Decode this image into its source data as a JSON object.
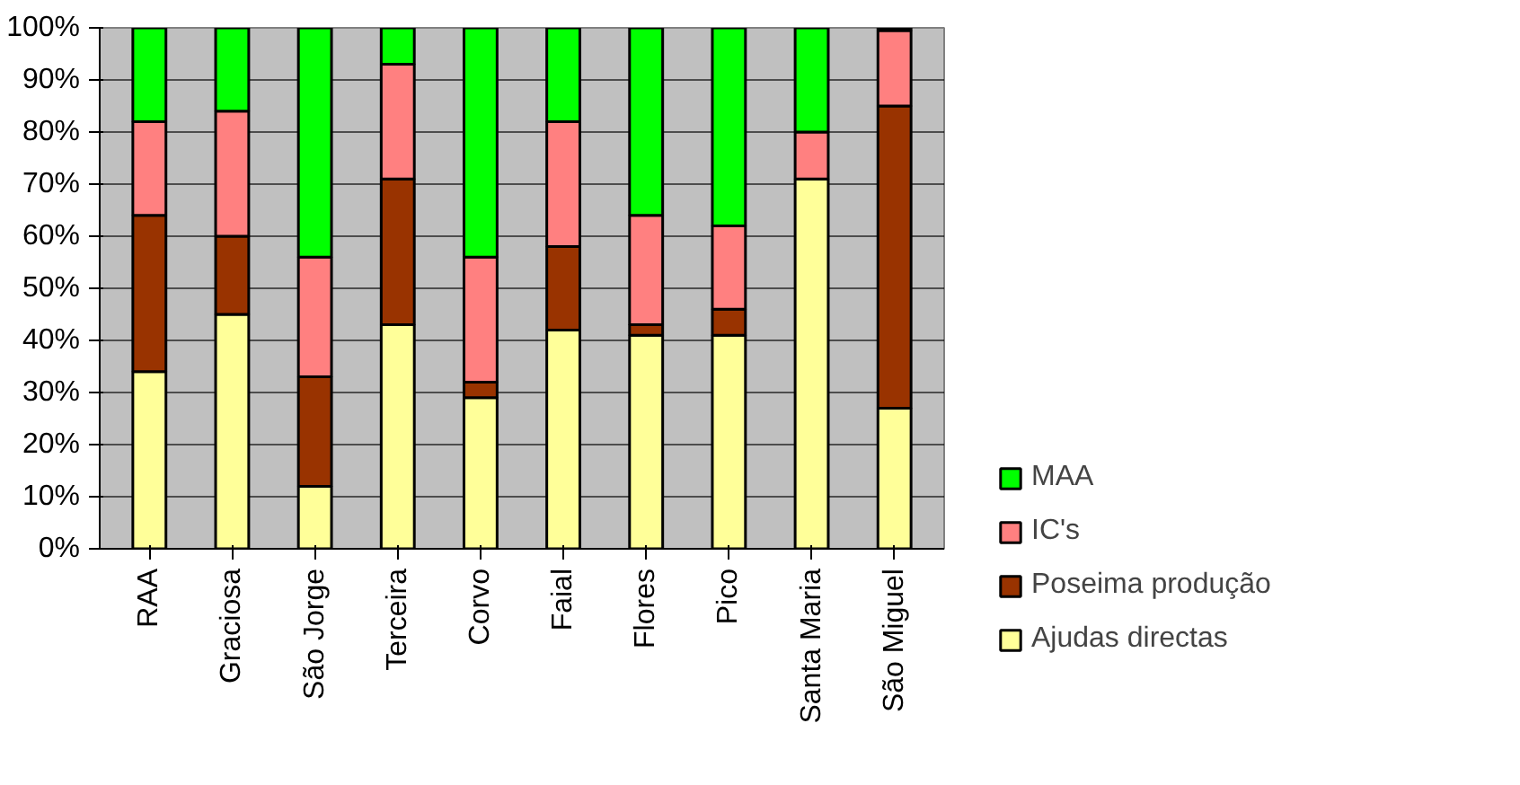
{
  "chart_data": {
    "type": "bar",
    "stacked": true,
    "categories": [
      "RAA",
      "Graciosa",
      "São Jorge",
      "Terceira",
      "Corvo",
      "Faial",
      "Flores",
      "Pico",
      "Santa Maria",
      "São Miguel"
    ],
    "series": [
      {
        "name": "Ajudas directas",
        "color": "#ffff99",
        "values": [
          34,
          45,
          12,
          43,
          29,
          42,
          41,
          41,
          71,
          27
        ]
      },
      {
        "name": "Poseima produção",
        "color": "#993300",
        "values": [
          30,
          15,
          21,
          28,
          3,
          16,
          2,
          5,
          0,
          58
        ]
      },
      {
        "name": "IC's",
        "color": "#ff8080",
        "values": [
          18,
          24,
          23,
          22,
          24,
          24,
          21,
          16,
          9,
          14.5
        ]
      },
      {
        "name": "MAA",
        "color": "#00ff00",
        "values": [
          18,
          16,
          44,
          7,
          44,
          18,
          36,
          38,
          20,
          0.5
        ]
      }
    ],
    "ylim": [
      0,
      100
    ],
    "yticks": [
      {
        "value": 0,
        "label": "0%"
      },
      {
        "value": 10,
        "label": "10%"
      },
      {
        "value": 20,
        "label": "20%"
      },
      {
        "value": 30,
        "label": "30%"
      },
      {
        "value": 40,
        "label": "40%"
      },
      {
        "value": 50,
        "label": "50%"
      },
      {
        "value": 60,
        "label": "60%"
      },
      {
        "value": 70,
        "label": "70%"
      },
      {
        "value": 80,
        "label": "80%"
      },
      {
        "value": 90,
        "label": "90%"
      },
      {
        "value": 100,
        "label": "100%"
      }
    ],
    "grid": "y",
    "legend": "right"
  }
}
